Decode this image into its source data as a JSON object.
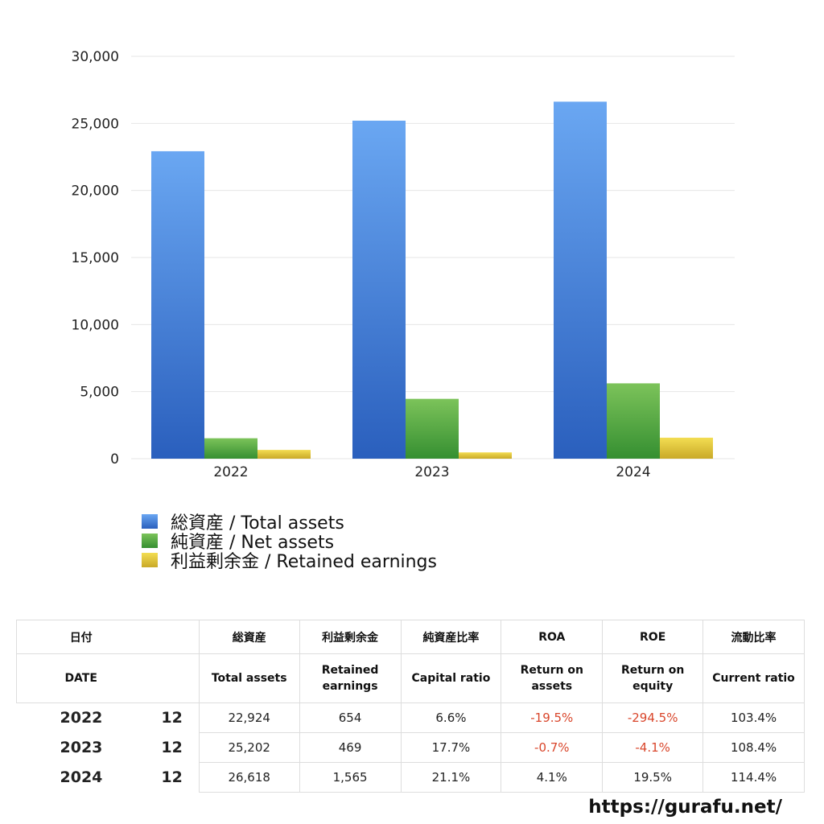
{
  "chart_data": {
    "type": "bar",
    "categories": [
      "2022",
      "2023",
      "2024"
    ],
    "series": [
      {
        "name": "総資産 / Total assets",
        "values": [
          22924,
          25202,
          26618
        ],
        "color_top": "#6aa7f2",
        "color_bottom": "#2a5fbd"
      },
      {
        "name": "純資産 / Net assets",
        "values": [
          1523,
          4461,
          5617
        ],
        "color_top": "#7cc35a",
        "color_bottom": "#358f31"
      },
      {
        "name": "利益剰余金 / Retained earnings",
        "values": [
          654,
          469,
          1565
        ],
        "color_top": "#f3dd52",
        "color_bottom": "#c9a928"
      }
    ],
    "yticks": [
      "0",
      "5,000",
      "10,000",
      "15,000",
      "20,000",
      "25,000",
      "30,000"
    ],
    "ylim": [
      0,
      30000
    ],
    "grid": true,
    "legend_position": "bottom-left"
  },
  "table": {
    "headers_jp": [
      "日付",
      "総資産",
      "利益剰余金",
      "純資産比率",
      "ROA",
      "ROE",
      "流動比率"
    ],
    "headers_en": [
      "DATE",
      "Total assets",
      "Retained earnings",
      "Capital ratio",
      "Return on assets",
      "Return on equity",
      "Current ratio"
    ],
    "rows": [
      {
        "year": "2022",
        "month": "12",
        "total_assets": "22,924",
        "retained": "654",
        "capital_ratio": "6.6%",
        "roa": "-19.5%",
        "roe": "-294.5%",
        "current_ratio": "103.4%"
      },
      {
        "year": "2023",
        "month": "12",
        "total_assets": "25,202",
        "retained": "469",
        "capital_ratio": "17.7%",
        "roa": "-0.7%",
        "roe": "-4.1%",
        "current_ratio": "108.4%"
      },
      {
        "year": "2024",
        "month": "12",
        "total_assets": "26,618",
        "retained": "1,565",
        "capital_ratio": "21.1%",
        "roa": "4.1%",
        "roe": "19.5%",
        "current_ratio": "114.4%"
      }
    ]
  },
  "negative_color": "#d9462b",
  "footer": {
    "url": "https://gurafu.net/"
  }
}
